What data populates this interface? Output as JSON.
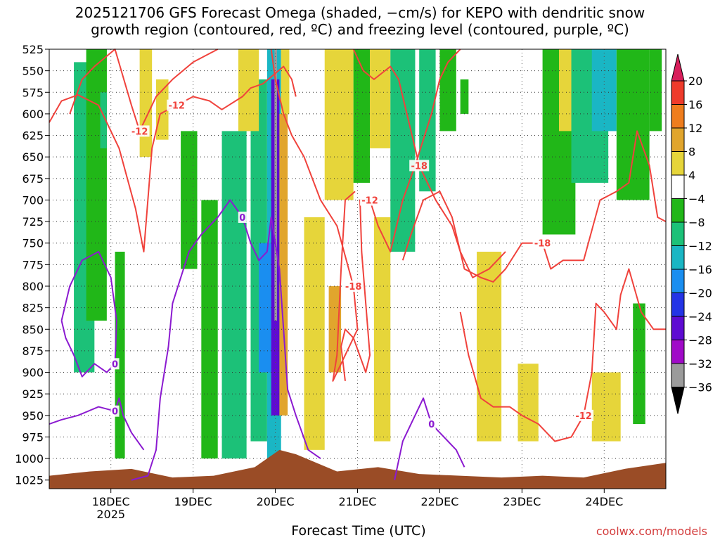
{
  "title": {
    "line1": "2025121706 GFS Forecast Omega (shaded, −cm/s) for KEPO with dendritic snow",
    "line2": "growth region (contoured, red, ºC) and freezing level (contoured, purple, ºC)"
  },
  "credit": "coolwx.com/models",
  "chart_data": {
    "type": "heatmap",
    "xlabel": "Forecast Time (UTC)",
    "ylabel": "",
    "x_ticks": [
      {
        "t": 0.75,
        "label": "18DEC",
        "sub": "2025"
      },
      {
        "t": 1.75,
        "label": "19DEC",
        "sub": ""
      },
      {
        "t": 2.75,
        "label": "20DEC",
        "sub": ""
      },
      {
        "t": 3.75,
        "label": "21DEC",
        "sub": ""
      },
      {
        "t": 4.75,
        "label": "22DEC",
        "sub": ""
      },
      {
        "t": 5.75,
        "label": "23DEC",
        "sub": ""
      },
      {
        "t": 6.75,
        "label": "24DEC",
        "sub": ""
      }
    ],
    "x_range": [
      0,
      7.5
    ],
    "y_ticks": [
      525,
      550,
      575,
      600,
      625,
      650,
      675,
      700,
      725,
      750,
      775,
      800,
      825,
      850,
      875,
      900,
      925,
      950,
      975,
      1000,
      1025
    ],
    "y_range": [
      525,
      1035
    ],
    "grid": true,
    "colorbar": {
      "labels": [
        "20",
        "16",
        "12",
        "8",
        "4",
        "−4",
        "−8",
        "−12",
        "−16",
        "−20",
        "−24",
        "−28",
        "−32",
        "−36"
      ],
      "colors": [
        "#d81e5b",
        "#ee3b2b",
        "#ef7d1d",
        "#e1a52d",
        "#e6d53a",
        "#ffffff",
        "#21b718",
        "#1cc178",
        "#1ab6c4",
        "#1a8ef0",
        "#2434e6",
        "#5e0bd2",
        "#a00ac8",
        "#9b9b9b",
        "#000000"
      ]
    },
    "omega_blobs": [
      {
        "x1": 0.3,
        "x2": 0.55,
        "p1": 540,
        "p2": 900,
        "level": -8
      },
      {
        "x1": 0.45,
        "x2": 0.7,
        "p1": 525,
        "p2": 840,
        "level": -6
      },
      {
        "x1": 0.8,
        "x2": 0.92,
        "p1": 760,
        "p2": 1000,
        "level": -6
      },
      {
        "x1": 0.62,
        "x2": 0.7,
        "p1": 525,
        "p2": 700,
        "level": -6
      },
      {
        "x1": 0.62,
        "x2": 0.7,
        "p1": 575,
        "p2": 640,
        "level": -10
      },
      {
        "x1": 1.1,
        "x2": 1.25,
        "p1": 525,
        "p2": 650,
        "level": 5
      },
      {
        "x1": 1.3,
        "x2": 1.45,
        "p1": 560,
        "p2": 630,
        "level": 5
      },
      {
        "x1": 1.6,
        "x2": 1.8,
        "p1": 620,
        "p2": 780,
        "level": -6
      },
      {
        "x1": 1.85,
        "x2": 2.05,
        "p1": 700,
        "p2": 1000,
        "level": -6
      },
      {
        "x1": 2.1,
        "x2": 2.4,
        "p1": 620,
        "p2": 1000,
        "level": -8
      },
      {
        "x1": 2.45,
        "x2": 2.65,
        "p1": 560,
        "p2": 980,
        "level": -8
      },
      {
        "x1": 2.3,
        "x2": 2.55,
        "p1": 525,
        "p2": 620,
        "level": 5
      },
      {
        "x1": 2.65,
        "x2": 2.82,
        "p1": 525,
        "p2": 1000,
        "level": -12
      },
      {
        "x1": 2.55,
        "x2": 2.7,
        "p1": 750,
        "p2": 900,
        "level": -16
      },
      {
        "x1": 2.7,
        "x2": 2.8,
        "p1": 560,
        "p2": 950,
        "level": -24
      },
      {
        "x1": 2.74,
        "x2": 2.77,
        "p1": 525,
        "p2": 840,
        "level": -32
      },
      {
        "x1": 2.8,
        "x2": 2.9,
        "p1": 600,
        "p2": 950,
        "level": 10
      },
      {
        "x1": 2.82,
        "x2": 2.92,
        "p1": 525,
        "p2": 600,
        "level": 5
      },
      {
        "x1": 3.1,
        "x2": 3.35,
        "p1": 720,
        "p2": 990,
        "level": 5
      },
      {
        "x1": 3.35,
        "x2": 3.7,
        "p1": 525,
        "p2": 700,
        "level": 5
      },
      {
        "x1": 3.4,
        "x2": 3.55,
        "p1": 800,
        "p2": 900,
        "level": 9
      },
      {
        "x1": 3.7,
        "x2": 3.9,
        "p1": 525,
        "p2": 680,
        "level": -6
      },
      {
        "x1": 3.95,
        "x2": 4.15,
        "p1": 720,
        "p2": 980,
        "level": 5
      },
      {
        "x1": 3.9,
        "x2": 4.15,
        "p1": 525,
        "p2": 640,
        "level": 5
      },
      {
        "x1": 4.15,
        "x2": 4.45,
        "p1": 525,
        "p2": 760,
        "level": -8
      },
      {
        "x1": 4.25,
        "x2": 4.45,
        "p1": 525,
        "p2": 640,
        "level": -10
      },
      {
        "x1": 4.5,
        "x2": 4.7,
        "p1": 525,
        "p2": 690,
        "level": -8
      },
      {
        "x1": 4.75,
        "x2": 4.95,
        "p1": 525,
        "p2": 620,
        "level": -6
      },
      {
        "x1": 5.0,
        "x2": 5.1,
        "p1": 560,
        "p2": 600,
        "level": -6
      },
      {
        "x1": 5.2,
        "x2": 5.5,
        "p1": 760,
        "p2": 980,
        "level": 5
      },
      {
        "x1": 5.7,
        "x2": 5.95,
        "p1": 890,
        "p2": 980,
        "level": 5
      },
      {
        "x1": 6.0,
        "x2": 6.4,
        "p1": 525,
        "p2": 740,
        "level": -6
      },
      {
        "x1": 6.2,
        "x2": 6.45,
        "p1": 525,
        "p2": 620,
        "level": 5
      },
      {
        "x1": 6.35,
        "x2": 6.8,
        "p1": 525,
        "p2": 680,
        "level": -8
      },
      {
        "x1": 6.6,
        "x2": 6.9,
        "p1": 525,
        "p2": 620,
        "level": -12
      },
      {
        "x1": 6.6,
        "x2": 6.95,
        "p1": 900,
        "p2": 980,
        "level": 5
      },
      {
        "x1": 6.9,
        "x2": 7.3,
        "p1": 525,
        "p2": 700,
        "level": -6
      },
      {
        "x1": 7.1,
        "x2": 7.25,
        "p1": 820,
        "p2": 960,
        "level": -6
      },
      {
        "x1": 7.3,
        "x2": 7.45,
        "p1": 525,
        "p2": 620,
        "level": -6
      }
    ],
    "contours": [
      {
        "label": "-12",
        "series": "dgz",
        "color": "#f0423c",
        "points": [
          [
            0,
            610
          ],
          [
            0.15,
            585
          ],
          [
            0.35,
            578
          ],
          [
            0.6,
            590
          ],
          [
            0.85,
            640
          ],
          [
            1.05,
            710
          ],
          [
            1.15,
            760
          ],
          [
            1.2,
            700
          ],
          [
            1.25,
            640
          ],
          [
            1.35,
            600
          ],
          [
            1.55,
            590
          ],
          [
            1.75,
            580
          ],
          [
            1.95,
            585
          ],
          [
            2.1,
            595
          ],
          [
            2.35,
            580
          ],
          [
            2.45,
            570
          ],
          [
            2.6,
            565
          ],
          [
            2.85,
            545
          ],
          [
            2.95,
            560
          ],
          [
            3.0,
            580
          ]
        ]
      },
      {
        "label": "-12",
        "series": "dgz",
        "color": "#f0423c",
        "points": [
          [
            0.25,
            600
          ],
          [
            0.4,
            560
          ],
          [
            0.55,
            545
          ],
          [
            0.8,
            525
          ],
          [
            1.0,
            590
          ],
          [
            1.1,
            620
          ],
          [
            1.3,
            580
          ],
          [
            1.5,
            560
          ],
          [
            1.75,
            540
          ],
          [
            2.05,
            525
          ]
        ]
      },
      {
        "label": "-18",
        "series": "dgz",
        "color": "#f0423c",
        "points": [
          [
            2.7,
            525
          ],
          [
            2.75,
            560
          ],
          [
            2.85,
            600
          ],
          [
            2.95,
            625
          ],
          [
            3.1,
            650
          ],
          [
            3.3,
            700
          ],
          [
            3.5,
            730
          ],
          [
            3.7,
            800
          ],
          [
            3.75,
            850
          ],
          [
            3.6,
            880
          ],
          [
            3.45,
            910
          ],
          [
            3.5,
            880
          ],
          [
            3.55,
            780
          ],
          [
            3.6,
            700
          ],
          [
            3.72,
            690
          ]
        ]
      },
      {
        "label": "-12",
        "series": "dgz",
        "color": "#f0423c",
        "points": [
          [
            3.6,
            910
          ],
          [
            3.55,
            870
          ],
          [
            3.6,
            850
          ],
          [
            3.7,
            860
          ],
          [
            3.85,
            900
          ],
          [
            3.9,
            880
          ],
          [
            3.85,
            820
          ],
          [
            3.8,
            760
          ],
          [
            3.78,
            700
          ],
          [
            3.9,
            700
          ],
          [
            4.0,
            730
          ],
          [
            4.15,
            760
          ],
          [
            4.3,
            700
          ],
          [
            4.45,
            660
          ],
          [
            4.55,
            630
          ],
          [
            4.65,
            600
          ],
          [
            4.75,
            560
          ],
          [
            4.85,
            540
          ],
          [
            5.0,
            525
          ]
        ]
      },
      {
        "label": "-18",
        "series": "dgz",
        "color": "#f0423c",
        "points": [
          [
            4.3,
            770
          ],
          [
            4.4,
            740
          ],
          [
            4.55,
            700
          ],
          [
            4.75,
            690
          ],
          [
            4.9,
            720
          ],
          [
            5.05,
            780
          ],
          [
            5.25,
            790
          ],
          [
            5.4,
            795
          ],
          [
            5.55,
            780
          ],
          [
            5.75,
            750
          ],
          [
            6.0,
            750
          ],
          [
            6.1,
            780
          ],
          [
            6.25,
            770
          ],
          [
            6.5,
            770
          ],
          [
            6.7,
            700
          ],
          [
            6.9,
            690
          ],
          [
            7.05,
            680
          ],
          [
            7.15,
            620
          ],
          [
            7.3,
            660
          ],
          [
            7.4,
            720
          ],
          [
            7.5,
            725
          ]
        ]
      },
      {
        "label": "-12",
        "series": "dgz",
        "color": "#f0423c",
        "points": [
          [
            5.0,
            830
          ],
          [
            5.1,
            880
          ],
          [
            5.25,
            930
          ],
          [
            5.4,
            940
          ],
          [
            5.6,
            940
          ],
          [
            5.75,
            950
          ],
          [
            5.95,
            960
          ],
          [
            6.15,
            980
          ],
          [
            6.35,
            975
          ],
          [
            6.5,
            950
          ],
          [
            6.6,
            900
          ],
          [
            6.65,
            820
          ],
          [
            6.75,
            830
          ],
          [
            6.9,
            850
          ],
          [
            6.95,
            810
          ],
          [
            7.05,
            780
          ],
          [
            7.2,
            830
          ],
          [
            7.35,
            850
          ],
          [
            7.5,
            850
          ]
        ]
      },
      {
        "label": "-18",
        "series": "dgz",
        "color": "#f0423c",
        "points": [
          [
            3.7,
            525
          ],
          [
            3.82,
            550
          ],
          [
            3.95,
            560
          ],
          [
            4.15,
            545
          ],
          [
            4.25,
            560
          ],
          [
            4.35,
            600
          ],
          [
            4.5,
            660
          ],
          [
            4.7,
            700
          ],
          [
            4.9,
            730
          ],
          [
            5.0,
            760
          ],
          [
            5.15,
            790
          ],
          [
            5.35,
            780
          ],
          [
            5.55,
            760
          ]
        ]
      },
      {
        "label": "0",
        "series": "freezing",
        "color": "#8b1ad0",
        "points": [
          [
            0,
            960
          ],
          [
            0.15,
            955
          ],
          [
            0.35,
            950
          ],
          [
            0.6,
            940
          ],
          [
            0.8,
            945
          ],
          [
            0.85,
            930
          ],
          [
            0.9,
            950
          ],
          [
            1.0,
            970
          ],
          [
            1.15,
            990
          ]
        ]
      },
      {
        "label": "0",
        "series": "freezing",
        "color": "#8b1ad0",
        "points": [
          [
            0.15,
            840
          ],
          [
            0.25,
            800
          ],
          [
            0.4,
            770
          ],
          [
            0.6,
            760
          ],
          [
            0.75,
            790
          ],
          [
            0.82,
            840
          ],
          [
            0.8,
            890
          ],
          [
            0.7,
            900
          ],
          [
            0.55,
            890
          ],
          [
            0.4,
            905
          ],
          [
            0.3,
            880
          ],
          [
            0.2,
            860
          ],
          [
            0.15,
            840
          ]
        ]
      },
      {
        "label": "0",
        "series": "freezing",
        "color": "#8b1ad0",
        "points": [
          [
            1.0,
            1025
          ],
          [
            1.2,
            1020
          ],
          [
            1.3,
            990
          ],
          [
            1.35,
            930
          ],
          [
            1.45,
            870
          ],
          [
            1.5,
            820
          ],
          [
            1.7,
            760
          ],
          [
            1.85,
            740
          ],
          [
            2.05,
            720
          ],
          [
            2.2,
            700
          ],
          [
            2.35,
            720
          ],
          [
            2.45,
            750
          ],
          [
            2.55,
            770
          ],
          [
            2.65,
            760
          ],
          [
            2.7,
            720
          ],
          [
            2.8,
            780
          ],
          [
            2.85,
            850
          ],
          [
            2.9,
            920
          ],
          [
            3.0,
            950
          ],
          [
            3.15,
            990
          ],
          [
            3.3,
            1000
          ]
        ]
      },
      {
        "label": "0",
        "series": "freezing",
        "color": "#8b1ad0",
        "points": [
          [
            4.2,
            1025
          ],
          [
            4.3,
            980
          ],
          [
            4.45,
            950
          ],
          [
            4.55,
            930
          ],
          [
            4.65,
            960
          ],
          [
            4.8,
            975
          ],
          [
            4.95,
            990
          ],
          [
            5.05,
            1010
          ]
        ]
      }
    ],
    "terrain": [
      [
        0,
        1020
      ],
      [
        0.5,
        1015
      ],
      [
        1.0,
        1012
      ],
      [
        1.5,
        1022
      ],
      [
        2.0,
        1020
      ],
      [
        2.5,
        1010
      ],
      [
        2.8,
        990
      ],
      [
        3.0,
        995
      ],
      [
        3.5,
        1015
      ],
      [
        4.0,
        1010
      ],
      [
        4.5,
        1018
      ],
      [
        5.0,
        1020
      ],
      [
        5.5,
        1022
      ],
      [
        6.0,
        1020
      ],
      [
        6.5,
        1022
      ],
      [
        7.0,
        1012
      ],
      [
        7.5,
        1005
      ]
    ]
  }
}
